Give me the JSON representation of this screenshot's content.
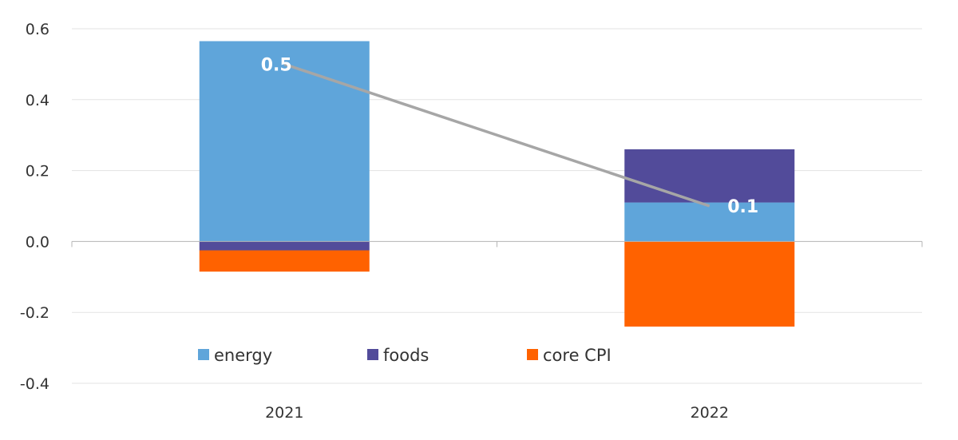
{
  "chart_data": {
    "type": "bar",
    "stacked": true,
    "categories": [
      "2021",
      "2022"
    ],
    "series": [
      {
        "name": "energy",
        "color": "#5fa5da",
        "values": [
          0.565,
          0.11
        ]
      },
      {
        "name": "foods",
        "color": "#524b9a",
        "values": [
          -0.025,
          0.15
        ]
      },
      {
        "name": "core CPI",
        "color": "#ff6200",
        "values": [
          -0.06,
          -0.24
        ]
      }
    ],
    "line": {
      "values": [
        0.5,
        0.1
      ],
      "color": "#a6a6a6"
    },
    "data_labels": [
      "0.5",
      "0.1"
    ],
    "y_ticks": [
      "0.6",
      "0.4",
      "0.2",
      "0.0",
      "-0.2",
      "-0.4"
    ],
    "ylim": [
      -0.4,
      0.6
    ],
    "grid": true,
    "legend_position": "bottom-inside"
  }
}
